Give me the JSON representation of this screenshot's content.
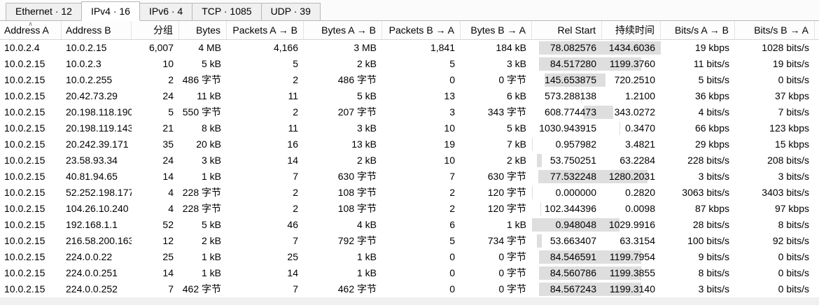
{
  "tabs": [
    {
      "id": "ethernet",
      "label": "Ethernet · 12",
      "active": false
    },
    {
      "id": "ipv4",
      "label": "IPv4 · 16",
      "active": true
    },
    {
      "id": "ipv6",
      "label": "IPv6 · 4",
      "active": false
    },
    {
      "id": "tcp",
      "label": "TCP · 1085",
      "active": false
    },
    {
      "id": "udp",
      "label": "UDP · 39",
      "active": false
    }
  ],
  "colors": {
    "timeline_bar": "#dedede"
  },
  "table": {
    "columns": [
      "Address A",
      "Address B",
      "分组",
      "Bytes",
      "Packets A → B",
      "Bytes A → B",
      "Packets B → A",
      "Bytes B → A",
      "Rel Start",
      "持续时间",
      "Bits/s A → B",
      "Bits/s B → A"
    ],
    "rows": [
      [
        "10.0.2.4",
        "10.0.2.15",
        "6,007",
        "4 MB",
        "4,166",
        "3 MB",
        "1,841",
        "184 kB",
        "78.082576",
        "1434.6036",
        "19 kbps",
        "1028 bits/s"
      ],
      [
        "10.0.2.15",
        "10.0.2.3",
        "10",
        "5 kB",
        "5",
        "2 kB",
        "5",
        "3 kB",
        "84.517280",
        "1199.3760",
        "11 bits/s",
        "19 bits/s"
      ],
      [
        "10.0.2.15",
        "10.0.2.255",
        "2",
        "486 字节",
        "2",
        "486 字节",
        "0",
        "0 字节",
        "145.653875",
        "720.2510",
        "5 bits/s",
        "0 bits/s"
      ],
      [
        "10.0.2.15",
        "20.42.73.29",
        "24",
        "11 kB",
        "11",
        "5 kB",
        "13",
        "6 kB",
        "573.288138",
        "1.2100",
        "36 kbps",
        "37 kbps"
      ],
      [
        "10.0.2.15",
        "20.198.118.190",
        "5",
        "550 字节",
        "2",
        "207 字节",
        "3",
        "343 字节",
        "608.774473",
        "343.0272",
        "4 bits/s",
        "7 bits/s"
      ],
      [
        "10.0.2.15",
        "20.198.119.143",
        "21",
        "8 kB",
        "11",
        "3 kB",
        "10",
        "5 kB",
        "1030.943915",
        "0.3470",
        "66 kbps",
        "123 kbps"
      ],
      [
        "10.0.2.15",
        "20.242.39.171",
        "35",
        "20 kB",
        "16",
        "13 kB",
        "19",
        "7 kB",
        "0.957982",
        "3.4821",
        "29 kbps",
        "15 kbps"
      ],
      [
        "10.0.2.15",
        "23.58.93.34",
        "24",
        "3 kB",
        "14",
        "2 kB",
        "10",
        "2 kB",
        "53.750251",
        "63.2284",
        "228 bits/s",
        "208 bits/s"
      ],
      [
        "10.0.2.15",
        "40.81.94.65",
        "14",
        "1 kB",
        "7",
        "630 字节",
        "7",
        "630 字节",
        "77.532248",
        "1280.2031",
        "3 bits/s",
        "3 bits/s"
      ],
      [
        "10.0.2.15",
        "52.252.198.177",
        "4",
        "228 字节",
        "2",
        "108 字节",
        "2",
        "120 字节",
        "0.000000",
        "0.2820",
        "3063 bits/s",
        "3403 bits/s"
      ],
      [
        "10.0.2.15",
        "104.26.10.240",
        "4",
        "228 字节",
        "2",
        "108 字节",
        "2",
        "120 字节",
        "102.344396",
        "0.0098",
        "87 kbps",
        "97 kbps"
      ],
      [
        "10.0.2.15",
        "192.168.1.1",
        "52",
        "5 kB",
        "46",
        "4 kB",
        "6",
        "1 kB",
        "0.948048",
        "1029.9916",
        "28 bits/s",
        "8 bits/s"
      ],
      [
        "10.0.2.15",
        "216.58.200.163",
        "12",
        "2 kB",
        "7",
        "792 字节",
        "5",
        "734 字节",
        "53.663407",
        "63.3154",
        "100 bits/s",
        "92 bits/s"
      ],
      [
        "10.0.2.15",
        "224.0.0.22",
        "25",
        "1 kB",
        "25",
        "1 kB",
        "0",
        "0 字节",
        "84.546591",
        "1199.7954",
        "9 bits/s",
        "0 bits/s"
      ],
      [
        "10.0.2.15",
        "224.0.0.251",
        "14",
        "1 kB",
        "14",
        "1 kB",
        "0",
        "0 字节",
        "84.560786",
        "1199.3855",
        "8 bits/s",
        "0 bits/s"
      ],
      [
        "10.0.2.15",
        "224.0.0.252",
        "7",
        "462 字节",
        "7",
        "462 字节",
        "0",
        "0 字节",
        "84.567243",
        "1199.3140",
        "3 bits/s",
        "0 bits/s"
      ]
    ]
  }
}
